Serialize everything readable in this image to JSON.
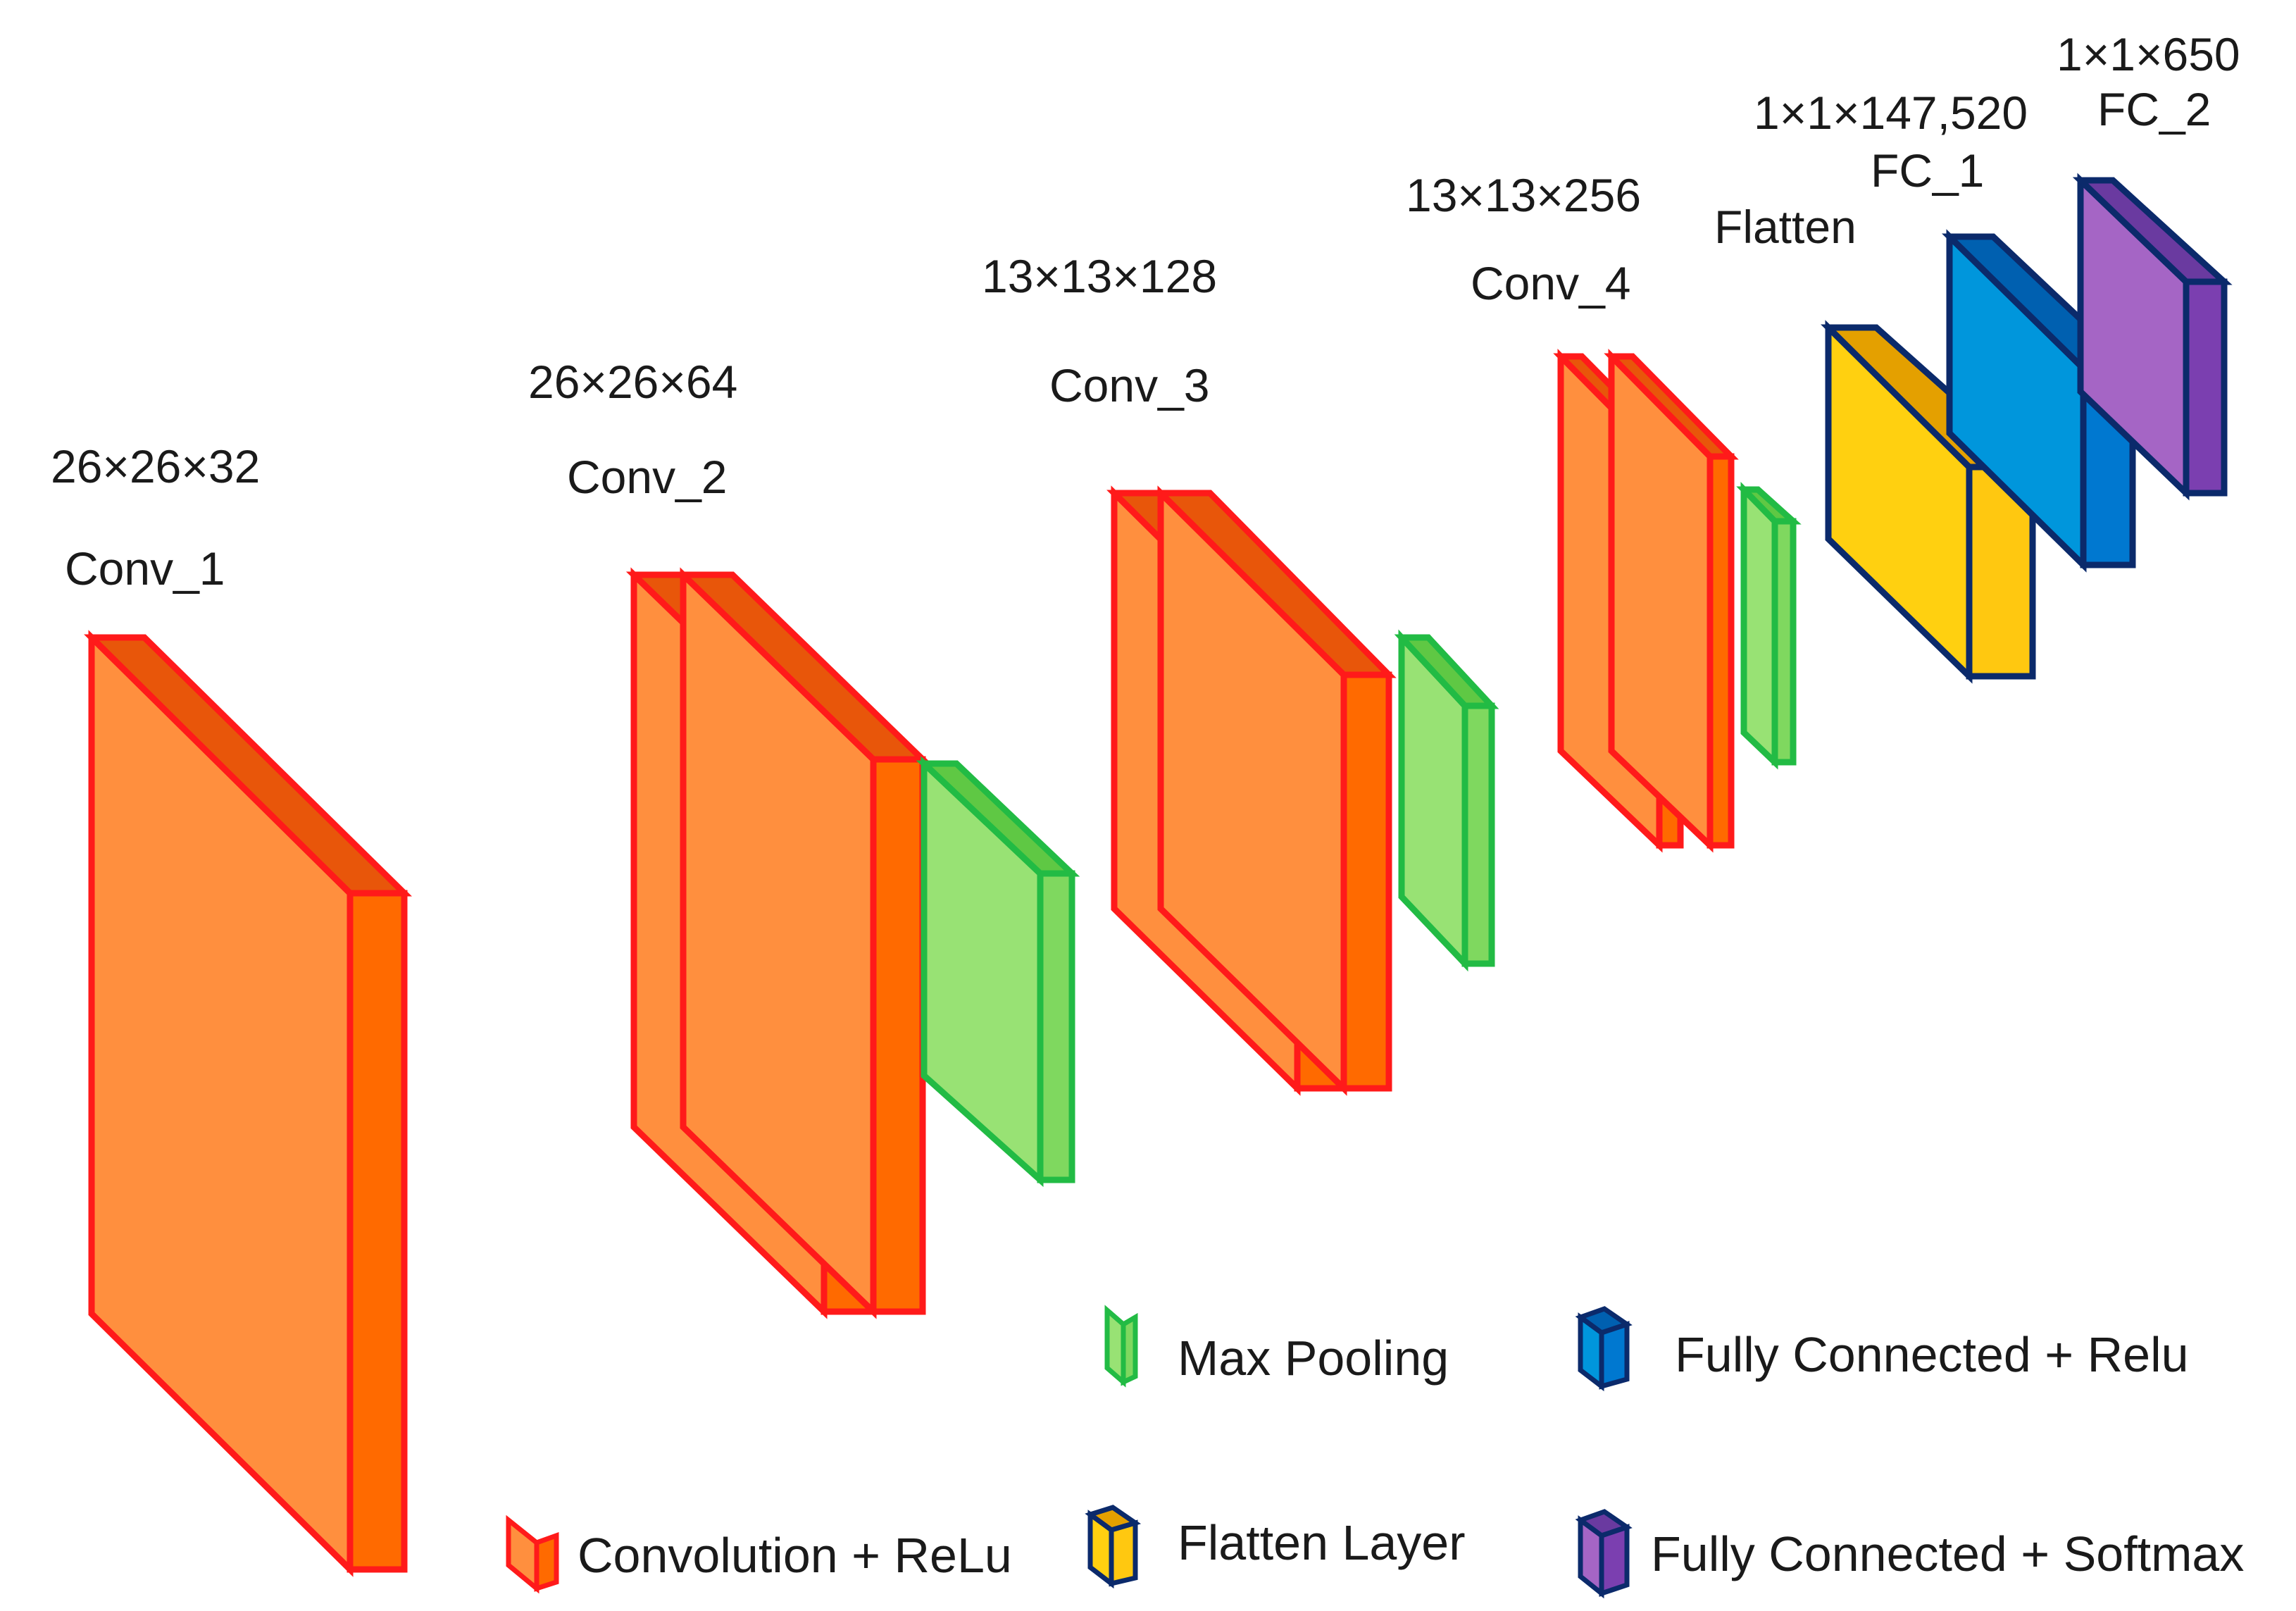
{
  "colors": {
    "conv_front": "#FF8F3E",
    "conv_top": "#E8560A",
    "conv_side": "#FF6A00",
    "conv_stroke": "#FF1A1A",
    "pool_front": "#98E274",
    "pool_top": "#5FC844",
    "pool_side": "#7FD85F",
    "pool_stroke": "#22BB44",
    "flatten_front": "#FFD010",
    "flatten_top": "#E4A000",
    "flatten_side": "#FFC810",
    "fc_front": "#0096DC",
    "fc_top": "#0060B0",
    "fc_side": "#0078D0",
    "softmax_front": "#A565C5",
    "softmax_top": "#6A3AA0",
    "softmax_side": "#7B3FB0",
    "dark_stroke": "#0B2A6B"
  },
  "layers": {
    "conv1": {
      "name": "Conv_1",
      "dims": "26×26×32"
    },
    "conv2": {
      "name": "Conv_2",
      "dims": "26×26×64"
    },
    "conv3": {
      "name": "Conv_3",
      "dims": "13×13×128"
    },
    "conv4": {
      "name": "Conv_4",
      "dims": "13×13×256"
    },
    "flatten": {
      "name": "Flatten"
    },
    "fc1": {
      "name": "FC_1",
      "dims": "1×1×147,520"
    },
    "fc2": {
      "name": "FC_2",
      "dims": "1×1×650"
    }
  },
  "legend": {
    "conv": "Convolution + ReLu",
    "pool": "Max Pooling",
    "flatten": "Flatten Layer",
    "fc_relu": "Fully Connected + Relu",
    "fc_softmax": "Fully Connected + Softmax"
  }
}
